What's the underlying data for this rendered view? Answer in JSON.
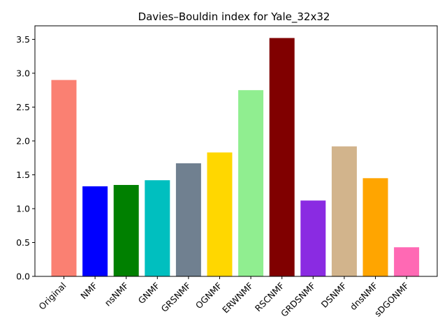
{
  "chart_data": {
    "type": "bar",
    "title": "Davies–Bouldin index for Yale_32x32",
    "xlabel": "",
    "ylabel": "",
    "categories": [
      "Original",
      "NMF",
      "nsNMF",
      "GNMF",
      "GRSNMF",
      "OGNMF",
      "ERWNMF",
      "RSCNMF",
      "GRDSNMF",
      "DSNMF",
      "dnsNMF",
      "sDGONMF"
    ],
    "values": [
      2.9,
      1.33,
      1.35,
      1.42,
      1.67,
      1.83,
      2.75,
      3.52,
      1.12,
      1.92,
      1.45,
      0.43
    ],
    "colors": [
      "#fa8072",
      "#0000ff",
      "#008000",
      "#00bfbf",
      "#708090",
      "#ffd700",
      "#90ee90",
      "#800000",
      "#8a2be2",
      "#d2b48c",
      "#ffa500",
      "#ff69b4"
    ],
    "ylim": [
      0,
      3.7
    ],
    "yticks": [
      "0.0",
      "0.5",
      "1.0",
      "1.5",
      "2.0",
      "2.5",
      "3.0",
      "3.5"
    ],
    "grid": false,
    "legend": "none"
  }
}
